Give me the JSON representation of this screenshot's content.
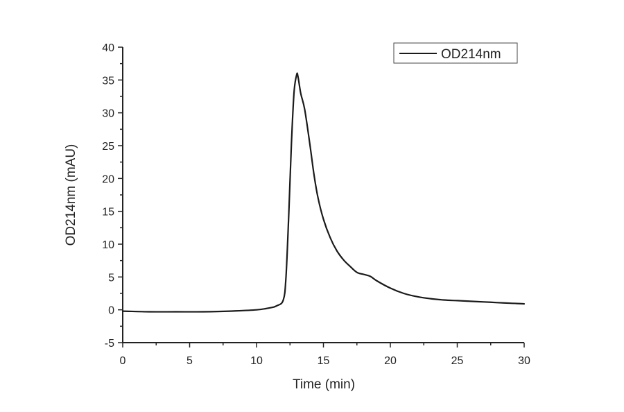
{
  "chart_data": {
    "type": "line",
    "title": "",
    "xlabel": "Time (min)",
    "ylabel": "OD214nm (mAU)",
    "xlim": [
      0,
      30
    ],
    "ylim": [
      -5,
      40
    ],
    "xticks": [
      0,
      5,
      10,
      15,
      20,
      25,
      30
    ],
    "yticks": [
      -5,
      0,
      5,
      10,
      15,
      20,
      25,
      30,
      35,
      40
    ],
    "grid": false,
    "legend_position": "upper right",
    "series": [
      {
        "name": "OD214nm",
        "color": "#1a1a1a",
        "x": [
          0,
          2,
          4,
          6,
          8,
          10,
          11,
          11.5,
          12,
          12.2,
          12.4,
          12.6,
          12.8,
          13.0,
          13.1,
          13.3,
          13.6,
          14.0,
          14.3,
          14.6,
          15.0,
          15.5,
          16.0,
          16.5,
          17.0,
          17.5,
          18.0,
          18.5,
          19.0,
          20.0,
          21.0,
          22.0,
          23.0,
          24.0,
          25.0,
          26.0,
          27.0,
          28.0,
          29.0,
          30.0
        ],
        "y": [
          -0.2,
          -0.3,
          -0.3,
          -0.3,
          -0.2,
          0.0,
          0.3,
          0.6,
          1.5,
          5,
          14,
          25,
          33,
          35.8,
          35.5,
          33,
          30.5,
          25,
          20.5,
          17,
          13.8,
          11,
          9,
          7.6,
          6.6,
          5.7,
          5.4,
          5.1,
          4.4,
          3.3,
          2.5,
          2.0,
          1.7,
          1.5,
          1.4,
          1.3,
          1.2,
          1.1,
          1.0,
          0.9
        ]
      }
    ]
  },
  "legend": {
    "label": "OD214nm"
  },
  "axes": {
    "x_title": "Time (min)",
    "y_title": "OD214nm (mAU)",
    "x_tick_labels": [
      "0",
      "5",
      "10",
      "15",
      "20",
      "25",
      "30"
    ],
    "y_tick_labels": [
      "-5",
      "0",
      "5",
      "10",
      "15",
      "20",
      "25",
      "30",
      "35",
      "40"
    ]
  }
}
